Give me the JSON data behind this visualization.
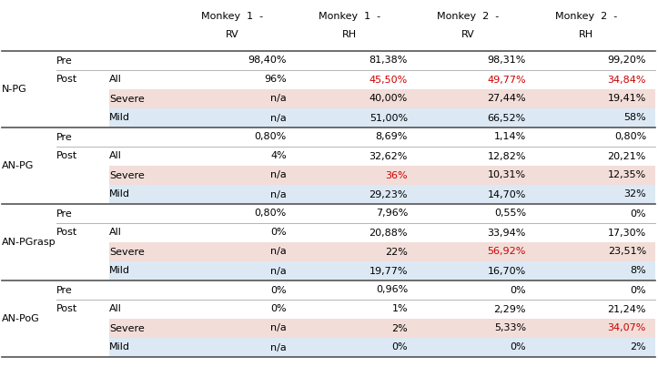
{
  "sections": [
    {
      "label": "N-PG",
      "pre": [
        "98,40%",
        "81,38%",
        "98,31%",
        "99,20%"
      ],
      "post_all": [
        "96%",
        "45,50%",
        "49,77%",
        "34,84%"
      ],
      "post_severe": [
        "n/a",
        "40,00%",
        "27,44%",
        "19,41%"
      ],
      "post_mild": [
        "n/a",
        "51,00%",
        "66,52%",
        "58%"
      ],
      "red_all": [
        false,
        true,
        true,
        true
      ],
      "red_severe": [
        false,
        false,
        false,
        false
      ],
      "red_mild": [
        false,
        false,
        false,
        false
      ]
    },
    {
      "label": "AN-PG",
      "pre": [
        "0,80%",
        "8,69%",
        "1,14%",
        "0,80%"
      ],
      "post_all": [
        "4%",
        "32,62%",
        "12,82%",
        "20,21%"
      ],
      "post_severe": [
        "n/a",
        "36%",
        "10,31%",
        "12,35%"
      ],
      "post_mild": [
        "n/a",
        "29,23%",
        "14,70%",
        "32%"
      ],
      "red_all": [
        false,
        false,
        false,
        false
      ],
      "red_severe": [
        false,
        true,
        false,
        false
      ],
      "red_mild": [
        false,
        false,
        false,
        false
      ]
    },
    {
      "label": "AN-PGrasp",
      "pre": [
        "0,80%",
        "7,96%",
        "0,55%",
        "0%"
      ],
      "post_all": [
        "0%",
        "20,88%",
        "33,94%",
        "17,30%"
      ],
      "post_severe": [
        "n/a",
        "22%",
        "56,92%",
        "23,51%"
      ],
      "post_mild": [
        "n/a",
        "19,77%",
        "16,70%",
        "8%"
      ],
      "red_all": [
        false,
        false,
        false,
        false
      ],
      "red_severe": [
        false,
        false,
        true,
        false
      ],
      "red_mild": [
        false,
        false,
        false,
        false
      ]
    },
    {
      "label": "AN-PoG",
      "pre": [
        "0%",
        "0,96%",
        "0%",
        "0%"
      ],
      "post_all": [
        "0%",
        "1%",
        "2,29%",
        "21,24%"
      ],
      "post_severe": [
        "n/a",
        "2%",
        "5,33%",
        "34,07%"
      ],
      "post_mild": [
        "n/a",
        "0%",
        "0%",
        "2%"
      ],
      "red_all": [
        false,
        false,
        false,
        false
      ],
      "red_severe": [
        false,
        false,
        false,
        true
      ],
      "red_mild": [
        false,
        false,
        false,
        false
      ]
    }
  ],
  "monkey_headers_row1": [
    "Monkey  1  -",
    "Monkey  1  -",
    "Monkey  2  -",
    "Monkey  2  -"
  ],
  "monkey_headers_row2": [
    "RV",
    "RH",
    "RV",
    "RH"
  ],
  "color_severe_bg": "#f2ddd8",
  "color_mild_bg": "#dce9f5",
  "color_red_text": "#cc0000",
  "color_black": "#000000",
  "color_white": "#ffffff",
  "thick_line_color": "#555555",
  "thin_line_color": "#aaaaaa"
}
